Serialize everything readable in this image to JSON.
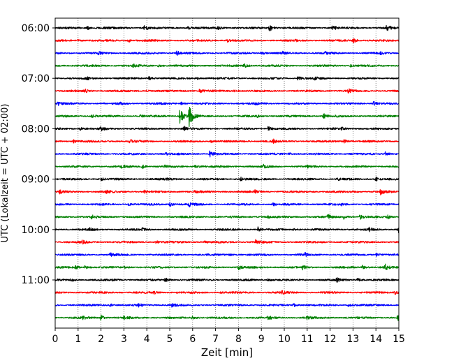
{
  "chart_data": {
    "type": "line",
    "title": "",
    "xlabel": "Zeit  [min]",
    "ylabel": "UTC (Lokalzeit = UTC + 02:00)",
    "xlim": [
      0,
      15
    ],
    "xticks": [
      "0",
      "1",
      "2",
      "3",
      "4",
      "5",
      "6",
      "7",
      "8",
      "9",
      "10",
      "11",
      "12",
      "13",
      "14",
      "15"
    ],
    "yticks": [
      "06:00",
      "07:00",
      "08:00",
      "09:00",
      "10:00",
      "11:00"
    ],
    "grid_vertical": true,
    "trace_interval_min": 15,
    "first_trace": "06:00",
    "color_cycle": [
      "#000000",
      "#ff0000",
      "#0000ff",
      "#008000"
    ],
    "series": [
      {
        "start": "06:00",
        "events": [
          [
            1.4,
            0.35
          ],
          [
            2.1,
            0.3
          ],
          [
            3.9,
            0.55
          ],
          [
            9.35,
            0.7
          ],
          [
            12.1,
            0.5
          ],
          [
            14.45,
            0.7
          ],
          [
            5.8,
            0.25
          ],
          [
            7.1,
            0.3
          ]
        ]
      },
      {
        "start": "06:15",
        "events": [
          [
            3.2,
            0.3
          ],
          [
            7.5,
            0.3
          ],
          [
            13.0,
            0.55
          ],
          [
            10.5,
            0.2
          ],
          [
            1.0,
            0.2
          ]
        ]
      },
      {
        "start": "06:30",
        "events": [
          [
            5.3,
            0.45
          ],
          [
            9.0,
            0.3
          ],
          [
            1.9,
            0.2
          ],
          [
            9.9,
            0.25
          ],
          [
            11.8,
            0.25
          ],
          [
            14.2,
            0.2
          ]
        ]
      },
      {
        "start": "06:45",
        "events": [
          [
            3.4,
            0.3
          ],
          [
            8.25,
            0.55
          ],
          [
            12.9,
            0.3
          ],
          [
            4.5,
            0.2
          ]
        ]
      },
      {
        "start": "07:00",
        "events": [
          [
            4.1,
            0.35
          ],
          [
            6.1,
            0.3
          ],
          [
            10.6,
            0.35
          ],
          [
            11.3,
            0.25
          ],
          [
            1.4,
            0.2
          ]
        ]
      },
      {
        "start": "07:15",
        "events": [
          [
            1.3,
            0.3
          ],
          [
            6.3,
            0.35
          ],
          [
            7.8,
            0.3
          ],
          [
            12.8,
            0.45
          ],
          [
            4.0,
            0.2
          ]
        ]
      },
      {
        "start": "07:30",
        "events": [
          [
            0.1,
            0.35
          ],
          [
            5.5,
            0.3
          ],
          [
            13.9,
            0.35
          ],
          [
            8.7,
            0.2
          ],
          [
            2.8,
            0.2
          ]
        ]
      },
      {
        "start": "07:45",
        "events": [
          [
            5.45,
            1.7
          ],
          [
            5.85,
            2.3
          ],
          [
            3.7,
            0.35
          ],
          [
            11.7,
            0.55
          ],
          [
            1.6,
            0.25
          ],
          [
            8.8,
            0.25
          ]
        ]
      },
      {
        "start": "08:00",
        "events": [
          [
            1.1,
            0.3
          ],
          [
            2.0,
            0.3
          ],
          [
            5.6,
            0.55
          ],
          [
            9.3,
            0.45
          ],
          [
            12.5,
            0.3
          ]
        ]
      },
      {
        "start": "08:15",
        "events": [
          [
            0.8,
            0.3
          ],
          [
            3.25,
            0.4
          ],
          [
            9.5,
            0.4
          ],
          [
            12.6,
            0.4
          ],
          [
            6.8,
            0.2
          ]
        ]
      },
      {
        "start": "08:30",
        "events": [
          [
            6.75,
            0.55
          ],
          [
            14.4,
            0.55
          ],
          [
            4.8,
            0.25
          ],
          [
            10.2,
            0.2
          ]
        ]
      },
      {
        "start": "08:45",
        "events": [
          [
            2.9,
            0.4
          ],
          [
            3.8,
            0.35
          ],
          [
            6.1,
            0.3
          ],
          [
            9.1,
            0.3
          ],
          [
            4.8,
            0.2
          ],
          [
            11.0,
            0.2
          ]
        ]
      },
      {
        "start": "09:00",
        "events": [
          [
            2.0,
            0.3
          ],
          [
            8.1,
            0.35
          ],
          [
            14.0,
            0.4
          ],
          [
            4.9,
            0.2
          ],
          [
            12.3,
            0.2
          ]
        ]
      },
      {
        "start": "09:15",
        "events": [
          [
            0.2,
            0.35
          ],
          [
            2.2,
            0.35
          ],
          [
            3.9,
            0.3
          ],
          [
            8.7,
            0.3
          ],
          [
            14.2,
            0.55
          ],
          [
            6.1,
            0.2
          ]
        ]
      },
      {
        "start": "09:30",
        "events": [
          [
            5.0,
            0.45
          ],
          [
            5.85,
            0.45
          ],
          [
            9.5,
            0.3
          ],
          [
            3.2,
            0.2
          ],
          [
            12.5,
            0.2
          ]
        ]
      },
      {
        "start": "09:45",
        "events": [
          [
            1.6,
            0.3
          ],
          [
            11.9,
            0.45
          ],
          [
            12.6,
            0.4
          ],
          [
            13.3,
            0.45
          ],
          [
            14.5,
            0.4
          ],
          [
            9.3,
            0.25
          ]
        ]
      },
      {
        "start": "10:00",
        "events": [
          [
            8.85,
            0.5
          ],
          [
            15.0,
            0.8
          ],
          [
            13.7,
            0.35
          ],
          [
            1.5,
            0.25
          ],
          [
            3.8,
            0.25
          ],
          [
            10.4,
            0.2
          ]
        ]
      },
      {
        "start": "10:15",
        "events": [
          [
            1.2,
            0.4
          ],
          [
            8.75,
            0.45
          ],
          [
            4.4,
            0.3
          ],
          [
            6.5,
            0.2
          ]
        ]
      },
      {
        "start": "10:30",
        "events": [
          [
            2.4,
            0.3
          ],
          [
            10.9,
            0.3
          ],
          [
            14.0,
            0.3
          ],
          [
            7.6,
            0.2
          ]
        ]
      },
      {
        "start": "10:45",
        "events": [
          [
            0.9,
            0.3
          ],
          [
            1.3,
            0.3
          ],
          [
            8.0,
            0.45
          ],
          [
            10.8,
            0.35
          ],
          [
            13.4,
            0.35
          ],
          [
            14.4,
            0.55
          ],
          [
            3.0,
            0.2
          ]
        ]
      },
      {
        "start": "11:00",
        "events": [
          [
            0.7,
            0.35
          ],
          [
            4.8,
            0.4
          ],
          [
            9.3,
            0.3
          ],
          [
            12.3,
            0.35
          ],
          [
            13.2,
            0.3
          ],
          [
            2.5,
            0.2
          ]
        ]
      },
      {
        "start": "11:15",
        "events": [
          [
            4.3,
            0.35
          ],
          [
            14.8,
            0.45
          ],
          [
            9.9,
            0.3
          ],
          [
            7.2,
            0.2
          ]
        ]
      },
      {
        "start": "11:30",
        "events": [
          [
            2.4,
            0.3
          ],
          [
            3.6,
            0.3
          ],
          [
            5.1,
            0.35
          ],
          [
            10.4,
            0.3
          ],
          [
            12.8,
            0.25
          ]
        ]
      },
      {
        "start": "11:45",
        "events": [
          [
            2.0,
            0.5
          ],
          [
            3.0,
            0.35
          ],
          [
            6.0,
            0.35
          ],
          [
            9.3,
            0.35
          ],
          [
            11.0,
            0.3
          ],
          [
            14.95,
            0.6
          ],
          [
            1.2,
            0.3
          ]
        ]
      }
    ]
  }
}
